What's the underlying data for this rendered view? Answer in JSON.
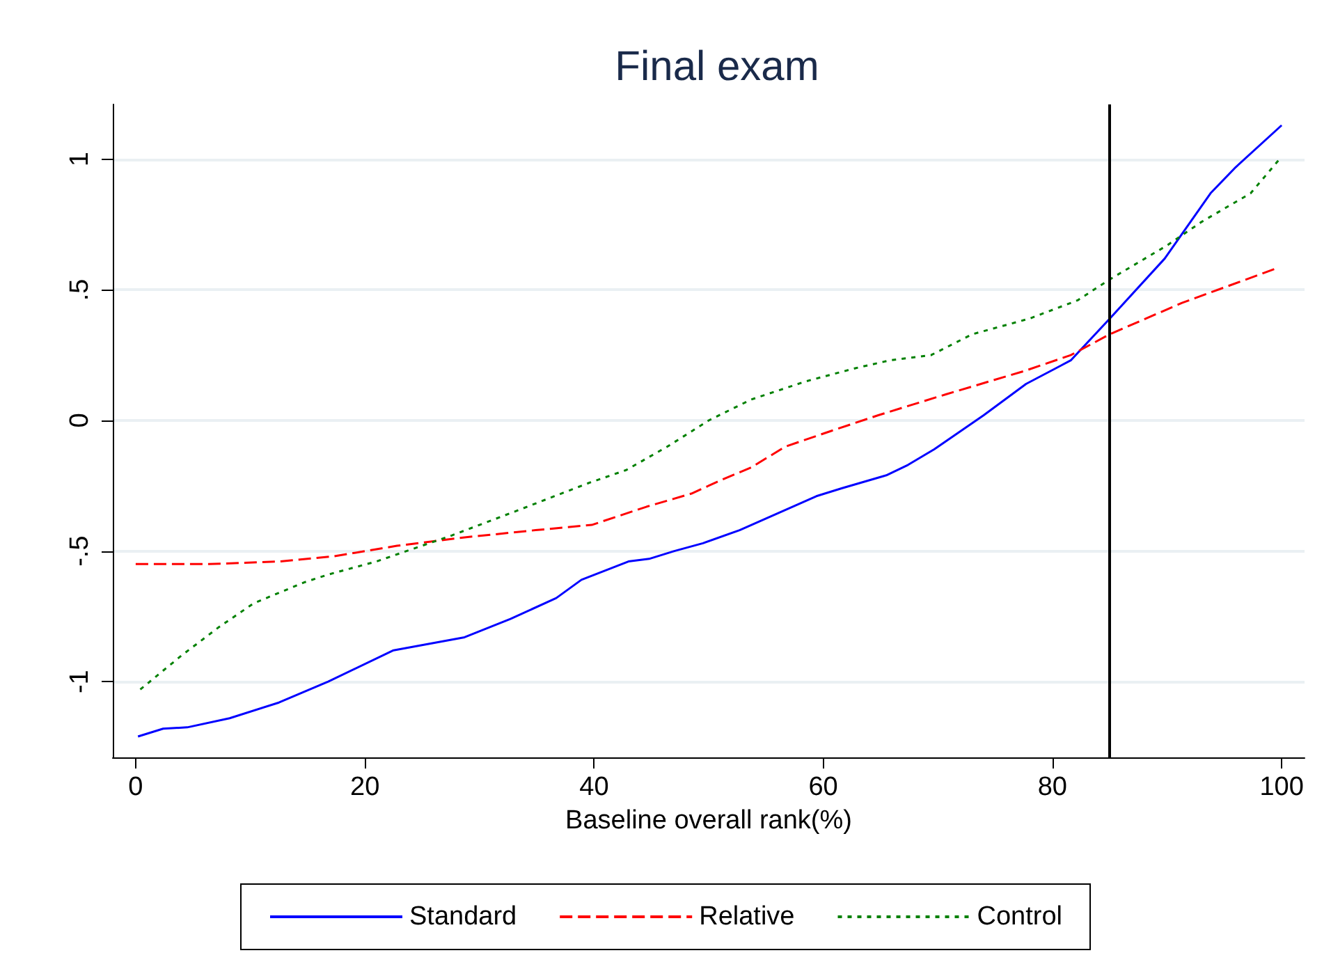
{
  "chart_data": {
    "type": "line",
    "title": "Final exam",
    "xlabel": "Baseline overall rank(%)",
    "xlim": [
      -2,
      102
    ],
    "xticks": [
      0,
      20,
      40,
      60,
      80,
      100
    ],
    "ylim": [
      -1.29,
      1.21
    ],
    "yticks": [
      -1,
      {
        "value": -0.5,
        "label": "-.5"
      },
      0,
      {
        "value": 0.5,
        "label": ".5"
      },
      1
    ],
    "grid": "y",
    "legend": "bottom",
    "marker": "none",
    "ref_lines": [
      {
        "axis": "x",
        "value": 85,
        "color": "#000000",
        "line_style": "solid"
      }
    ],
    "series": [
      {
        "name": "Standard",
        "color": "#0000ff",
        "line_style": "solid",
        "x": [
          0.2,
          2.4,
          4.5,
          8.2,
          12.5,
          16.8,
          22.5,
          28.7,
          32.7,
          36.7,
          38.9,
          43,
          44.8,
          47,
          49.5,
          52.7,
          59.4,
          61.6,
          65.5,
          67.4,
          69.7,
          74,
          77.7,
          81.6,
          85,
          89.8,
          93.8,
          96,
          100
        ],
        "values": [
          -1.21,
          -1.18,
          -1.175,
          -1.14,
          -1.08,
          -1.0,
          -0.88,
          -0.83,
          -0.76,
          -0.68,
          -0.61,
          -0.54,
          -0.53,
          -0.5,
          -0.47,
          -0.42,
          -0.29,
          -0.26,
          -0.21,
          -0.17,
          -0.11,
          0.02,
          0.14,
          0.23,
          0.39,
          0.62,
          0.87,
          0.97,
          1.13
        ]
      },
      {
        "name": "Relative",
        "color": "#ff0000",
        "line_style": "dashed",
        "x": [
          0,
          6.4,
          12.5,
          17.3,
          22.8,
          28.2,
          34.9,
          39.8,
          44.6,
          48.5,
          51,
          53.7,
          56.7,
          60.7,
          64.8,
          70.7,
          77.6,
          81.6,
          85,
          91.3,
          99.4
        ],
        "values": [
          -0.55,
          -0.55,
          -0.54,
          -0.52,
          -0.48,
          -0.45,
          -0.42,
          -0.4,
          -0.33,
          -0.28,
          -0.23,
          -0.18,
          -0.1,
          -0.04,
          0.02,
          0.1,
          0.19,
          0.25,
          0.33,
          0.45,
          0.58
        ]
      },
      {
        "name": "Control",
        "color": "#008000",
        "line_style": "dotted",
        "x": [
          0.4,
          4,
          7.3,
          10.3,
          14.7,
          16.8,
          21,
          27.6,
          33,
          39.5,
          42.8,
          46.4,
          50,
          53.7,
          58.5,
          62.8,
          65.8,
          69.4,
          73,
          78,
          82.2,
          85,
          90,
          93,
          97.3,
          100
        ],
        "values": [
          -1.03,
          -0.9,
          -0.79,
          -0.7,
          -0.62,
          -0.59,
          -0.54,
          -0.44,
          -0.35,
          -0.24,
          -0.19,
          -0.1,
          0.0,
          0.08,
          0.15,
          0.2,
          0.23,
          0.25,
          0.33,
          0.39,
          0.46,
          0.54,
          0.67,
          0.76,
          0.87,
          1.01
        ]
      }
    ]
  }
}
